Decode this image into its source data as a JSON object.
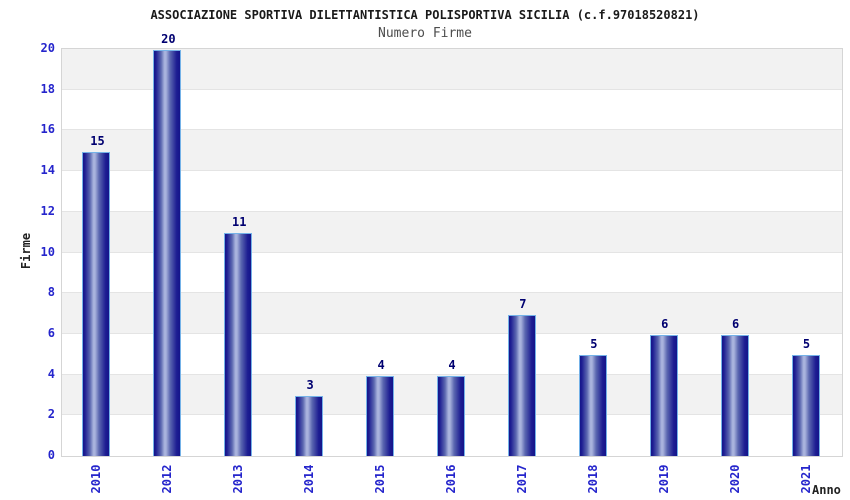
{
  "chart_data": {
    "type": "bar",
    "title": "ASSOCIAZIONE SPORTIVA DILETTANTISTICA POLISPORTIVA SICILIA (c.f.97018520821)",
    "subtitle": "Numero Firme",
    "xlabel": "Anno",
    "ylabel": "Firme",
    "categories": [
      "2010",
      "2012",
      "2013",
      "2014",
      "2015",
      "2016",
      "2017",
      "2018",
      "2019",
      "2020",
      "2021"
    ],
    "values": [
      15,
      20,
      11,
      3,
      4,
      4,
      7,
      5,
      6,
      6,
      5
    ],
    "ylim": [
      0,
      20
    ],
    "ytick_step": 2,
    "yticks": [
      0,
      2,
      4,
      6,
      8,
      10,
      12,
      14,
      16,
      18,
      20
    ],
    "legend": null,
    "grid": "horizontal-bands-every-2-units",
    "colors": {
      "bar_dark": "#15158a",
      "bar_mid": "#5b67b0",
      "bar_light": "#a9b3dd",
      "bar_outline": "#74b2e8",
      "tick_label": "#2525cc",
      "value_label": "#000070",
      "band_alt": "#f2f2f2",
      "band_base": "#ffffff",
      "gridline": "#e4e4e4",
      "plot_border": "#d5d5d5",
      "title_color": "#1a1a1a",
      "subtitle_color": "#4d4d4d",
      "axis_title_color": "#222222",
      "background": "#ffffff"
    }
  }
}
